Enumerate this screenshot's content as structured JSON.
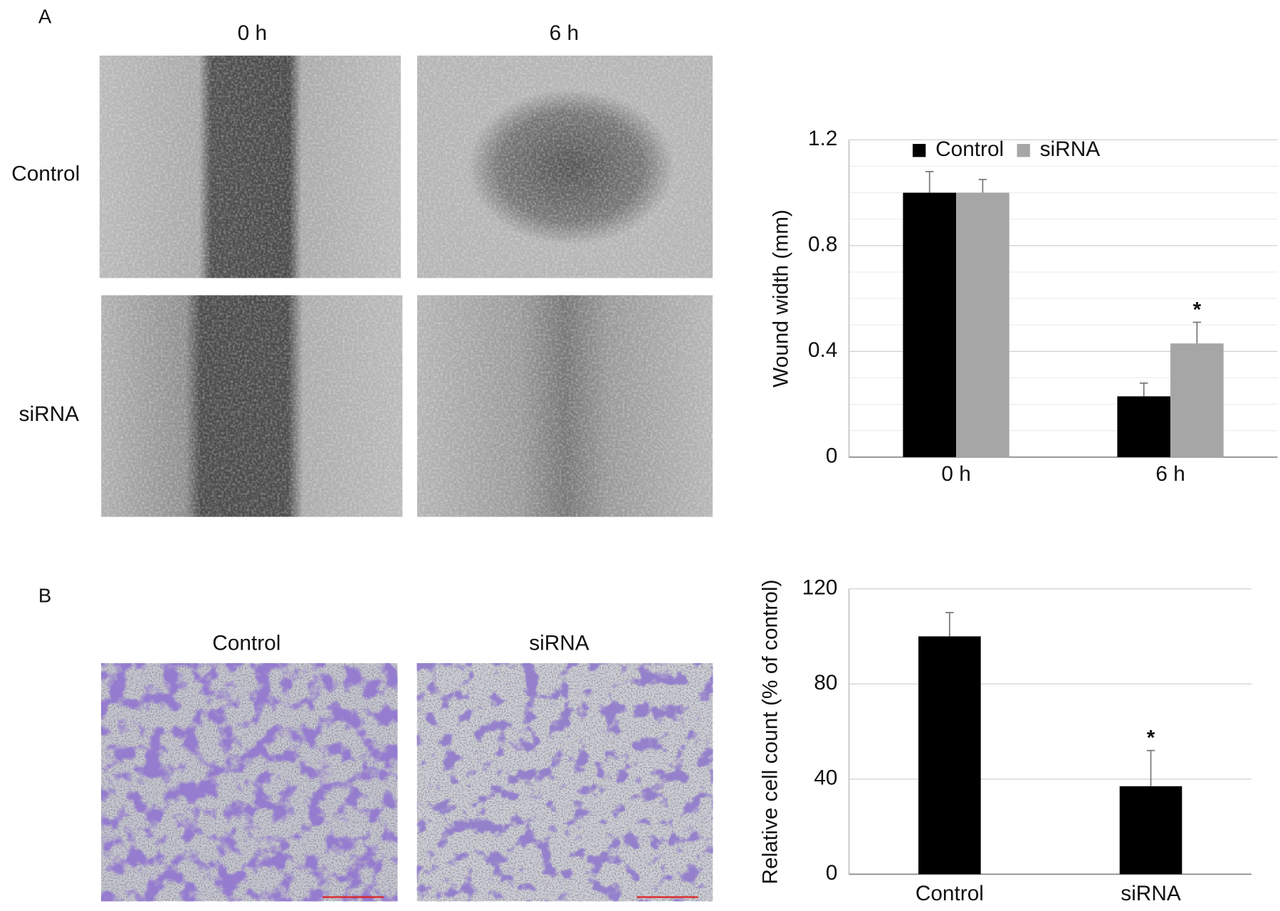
{
  "panels": {
    "a": {
      "label": "A",
      "columns": [
        "0 h",
        "6 h"
      ],
      "rows": [
        "Control",
        "siRNA"
      ]
    },
    "b": {
      "label": "B",
      "columns": [
        "Control",
        "siRNA"
      ]
    }
  },
  "chart_data": [
    {
      "type": "bar",
      "ylabel": "Wound width (mm)",
      "categories": [
        "0 h",
        "6 h"
      ],
      "series": [
        {
          "name": "Control",
          "color": "#000000",
          "values": [
            1.0,
            0.23
          ],
          "errors": [
            0.08,
            0.05
          ]
        },
        {
          "name": "siRNA",
          "color": "#a6a6a6",
          "values": [
            1.0,
            0.43
          ],
          "errors": [
            0.05,
            0.08
          ]
        }
      ],
      "ylim": [
        0,
        1.2
      ],
      "yticks": [
        0,
        0.4,
        0.8,
        1.2
      ],
      "minor_grid": [
        0.1,
        0.2,
        0.3,
        0.5,
        0.6,
        0.7,
        0.9,
        1.0,
        1.1
      ],
      "grid": true,
      "legend": "top",
      "annotations": [
        {
          "text": "*",
          "series": 1,
          "index": 1
        }
      ]
    },
    {
      "type": "bar",
      "ylabel": "Relative cell count (% of control)",
      "categories": [
        "Control",
        "siRNA"
      ],
      "series": [
        {
          "color": "#000000",
          "values": [
            100,
            37
          ],
          "errors": [
            10,
            15
          ]
        }
      ],
      "ylim": [
        0,
        120
      ],
      "yticks": [
        0,
        40,
        80,
        120
      ],
      "grid": true,
      "annotations": [
        {
          "text": "*",
          "series": 0,
          "index": 1
        }
      ]
    }
  ]
}
